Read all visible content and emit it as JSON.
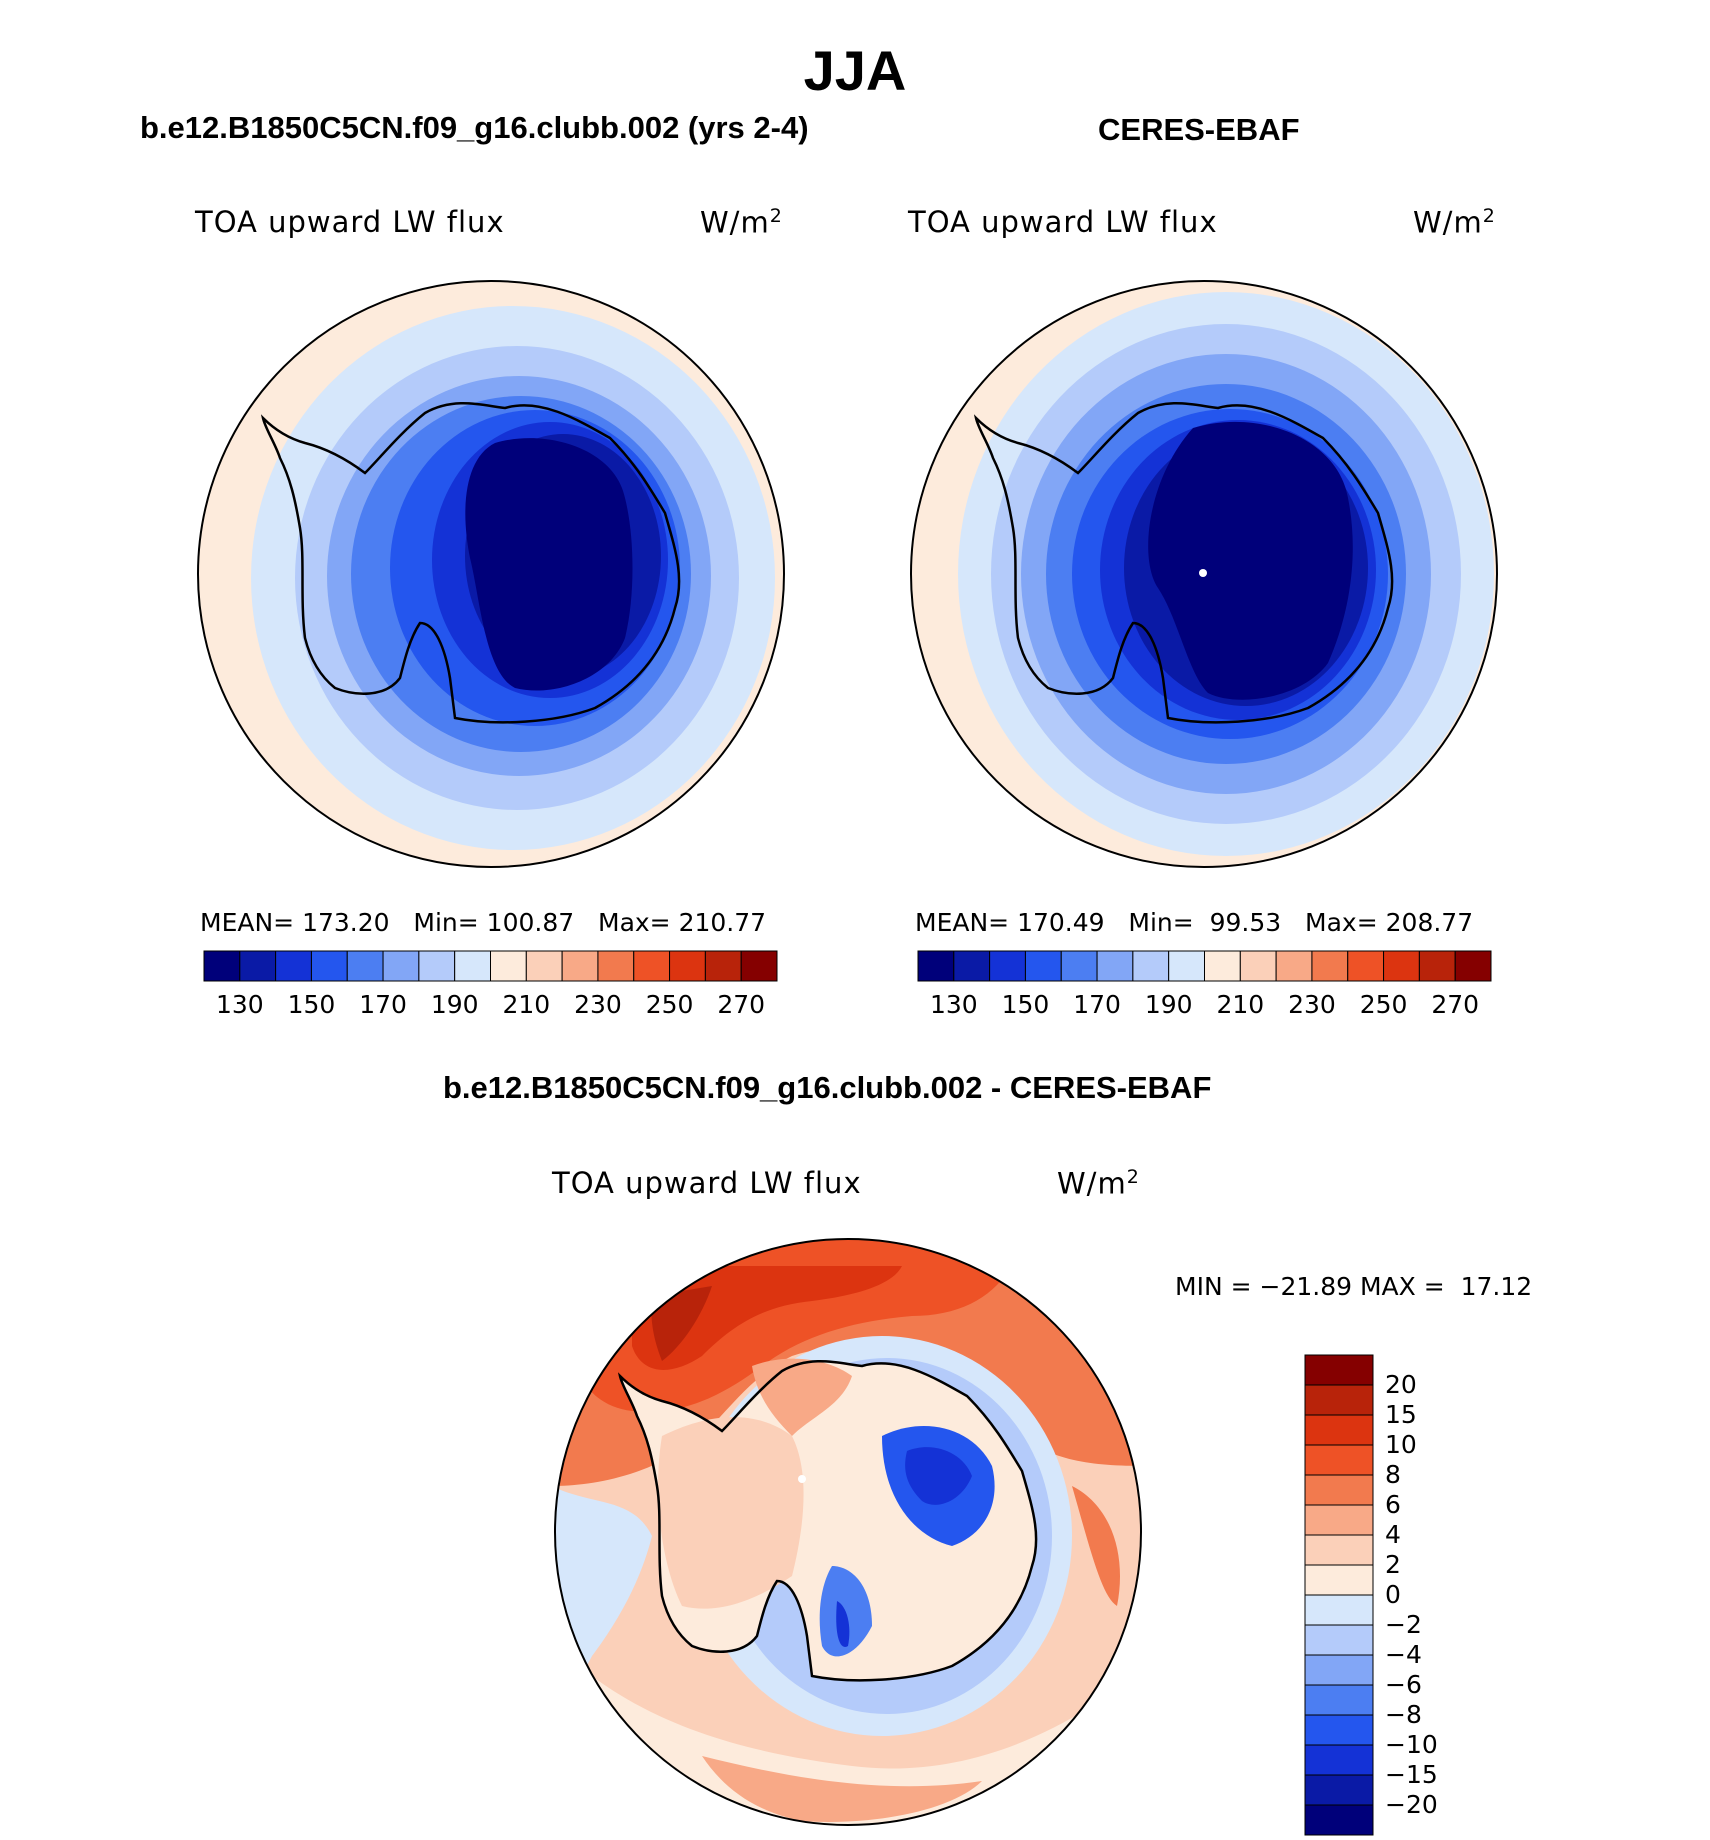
{
  "figure": {
    "title": "JJA",
    "panels": [
      {
        "title": "b.e12.B1850C5CN.f09_g16.clubb.002 (yrs 2-4)",
        "variable": "TOA upward LW flux",
        "units_base": "W/m",
        "units_exp": "2",
        "mean_label": "MEAN=",
        "mean": "173.20",
        "min_label": "Min=",
        "min": "100.87",
        "max_label": "Max=",
        "max": "210.77"
      },
      {
        "title": "CERES-EBAF",
        "variable": "TOA upward LW flux",
        "units_base": "W/m",
        "units_exp": "2",
        "mean_label": "MEAN=",
        "mean": "170.49",
        "min_label": "Min=",
        "min": "99.53",
        "max_label": "Max=",
        "max": "208.77"
      }
    ],
    "diff": {
      "title": "b.e12.B1850C5CN.f09_g16.clubb.002 - CERES-EBAF",
      "variable": "TOA upward LW flux",
      "units_base": "W/m",
      "units_exp": "2",
      "min_label": "MIN =",
      "min": "−21.89",
      "max_label": "MAX =",
      "max": "17.12"
    }
  },
  "colorbars": {
    "field_ticks": [
      "130",
      "150",
      "170",
      "190",
      "210",
      "230",
      "250",
      "270"
    ],
    "field_colors": [
      "#00007a",
      "#0a1aa6",
      "#1432d6",
      "#2456ee",
      "#4c7ef2",
      "#82a6f6",
      "#b4cbfa",
      "#d6e7fb",
      "#fdebdc",
      "#fbd0b9",
      "#f8a987",
      "#f27a4e",
      "#ee5226",
      "#dc3410",
      "#b8230a",
      "#850000"
    ],
    "diff_ticks": [
      "20",
      "15",
      "10",
      "8",
      "6",
      "4",
      "2",
      "0",
      "−2",
      "−4",
      "−6",
      "−8",
      "−10",
      "−15",
      "−20"
    ],
    "diff_colors": [
      "#850000",
      "#b8230a",
      "#dc3410",
      "#ee5226",
      "#f27a4e",
      "#f8a987",
      "#fbd0b9",
      "#fdebdc",
      "#d6e7fb",
      "#b4cbfa",
      "#82a6f6",
      "#4c7ef2",
      "#2456ee",
      "#1432d6",
      "#0a1aa6",
      "#00007a"
    ]
  },
  "colors": {
    "coast": "#000000",
    "border": "#000000"
  }
}
